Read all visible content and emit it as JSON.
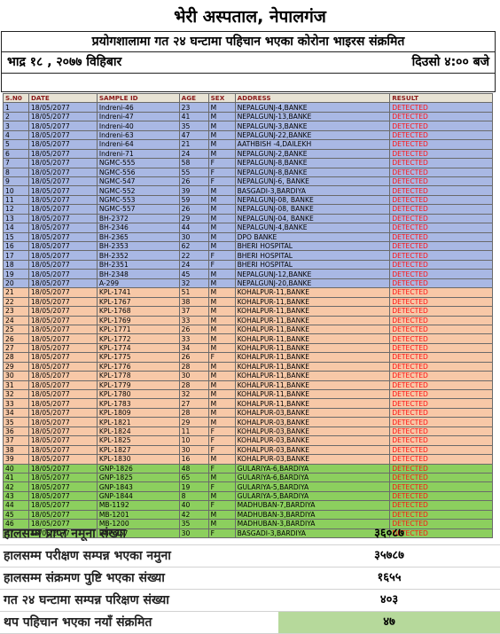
{
  "header": {
    "title": "भेरी अस्पताल, नेपालगंज",
    "subtitle": "प्रयोगशालामा गत २४ घन्टामा पहिचान भएका कोरोना भाइरस संक्रमित",
    "date": "भाद्र १८ , २०७७ विहिबार",
    "time": "दिउसो ४:०० बजे"
  },
  "table": {
    "columns": [
      "S.N0",
      "DATE",
      "SAMPLE ID",
      "AGE",
      "SEX",
      "ADDRESS",
      "RESULT"
    ],
    "rows": [
      {
        "sn": "1",
        "date": "18/05/2077",
        "id": "Indreni-46",
        "age": "23",
        "sex": "M",
        "addr": "NEPALGUNJ-4,BANKE",
        "res": "DETECTED",
        "grp": "blue"
      },
      {
        "sn": "2",
        "date": "18/05/2077",
        "id": "Indreni-47",
        "age": "41",
        "sex": "M",
        "addr": "NEPALGUNJ-13,BANKE",
        "res": "DETECTED",
        "grp": "blue"
      },
      {
        "sn": "3",
        "date": "18/05/2077",
        "id": "Indreni-40",
        "age": "35",
        "sex": "M",
        "addr": "NEPALGUNJ-3,BANKE",
        "res": "DETECTED",
        "grp": "blue"
      },
      {
        "sn": "4",
        "date": "18/05/2077",
        "id": "Indreni-63",
        "age": "47",
        "sex": "M",
        "addr": "NEPALGUNJ-22,BANKE",
        "res": "DETECTED",
        "grp": "blue"
      },
      {
        "sn": "5",
        "date": "18/05/2077",
        "id": "Indreni-64",
        "age": "21",
        "sex": "M",
        "addr": "AATHBISH -4,DAILEKH",
        "res": "DETECTED",
        "grp": "blue"
      },
      {
        "sn": "6",
        "date": "18/05/2077",
        "id": "Indreni-71",
        "age": "24",
        "sex": "M",
        "addr": "NEPALGUNJ-2,BANKE",
        "res": "DETECTED",
        "grp": "blue"
      },
      {
        "sn": "7",
        "date": "18/05/2077",
        "id": "NGMC-555",
        "age": "58",
        "sex": "F",
        "addr": "NEPALGUNJ-8,BANKE",
        "res": "DETECTED",
        "grp": "blue"
      },
      {
        "sn": "8",
        "date": "18/05/2077",
        "id": "NGMC-556",
        "age": "55",
        "sex": "F",
        "addr": "NEPALGUNJ-8,BANKE",
        "res": "DETECTED",
        "grp": "blue"
      },
      {
        "sn": "9",
        "date": "18/05/2077",
        "id": "NGMC-547",
        "age": "26",
        "sex": "F",
        "addr": "NEPALGUNJ-6, BANKE",
        "res": "DETECTED",
        "grp": "blue"
      },
      {
        "sn": "10",
        "date": "18/05/2077",
        "id": "NGMC-552",
        "age": "39",
        "sex": "M",
        "addr": "BASGADI-3,BARDIYA",
        "res": "DETECTED",
        "grp": "blue"
      },
      {
        "sn": "11",
        "date": "18/05/2077",
        "id": "NGMC-553",
        "age": "59",
        "sex": "M",
        "addr": "NEPALGUNJ-08, BANKE",
        "res": "DETECTED",
        "grp": "blue"
      },
      {
        "sn": "12",
        "date": "18/05/2077",
        "id": "NGMC-557",
        "age": "26",
        "sex": "M",
        "addr": "NEPALGUNJ-08, BANKE",
        "res": "DETECTED",
        "grp": "blue"
      },
      {
        "sn": "13",
        "date": "18/05/2077",
        "id": "BH-2372",
        "age": "29",
        "sex": "M",
        "addr": "NEPALGUNJ-04, BANKE",
        "res": "DETECTED",
        "grp": "blue"
      },
      {
        "sn": "14",
        "date": "18/05/2077",
        "id": "BH-2346",
        "age": "44",
        "sex": "M",
        "addr": "NEPALGUNJ-4,BANKE",
        "res": "DETECTED",
        "grp": "blue"
      },
      {
        "sn": "15",
        "date": "18/05/2077",
        "id": "BH-2365",
        "age": "30",
        "sex": "M",
        "addr": "DPO BANKE",
        "res": "DETECTED",
        "grp": "blue"
      },
      {
        "sn": "16",
        "date": "18/05/2077",
        "id": "BH-2353",
        "age": "62",
        "sex": "M",
        "addr": "BHERI HOSPITAL",
        "res": "DETECTED",
        "grp": "blue"
      },
      {
        "sn": "17",
        "date": "18/05/2077",
        "id": "BH-2352",
        "age": "22",
        "sex": "F",
        "addr": "BHERI HOSPITAL",
        "res": "DETECTED",
        "grp": "blue"
      },
      {
        "sn": "18",
        "date": "18/05/2077",
        "id": "BH-2351",
        "age": "24",
        "sex": "F",
        "addr": "BHERI HOSPITAL",
        "res": "DETECTED",
        "grp": "blue"
      },
      {
        "sn": "19",
        "date": "18/05/2077",
        "id": "BH-2348",
        "age": "45",
        "sex": "M",
        "addr": "NEPALGUNJ-12,BANKE",
        "res": "DETECTED",
        "grp": "blue"
      },
      {
        "sn": "20",
        "date": "18/05/2077",
        "id": "A-299",
        "age": "32",
        "sex": "M",
        "addr": "NEPALGUNJ-20,BANKE",
        "res": "DETECTED",
        "grp": "blue"
      },
      {
        "sn": "21",
        "date": "18/05/2077",
        "id": "KPL-1741",
        "age": "51",
        "sex": "M",
        "addr": "KOHALPUR-11,BANKE",
        "res": "DETECTED",
        "grp": "orange"
      },
      {
        "sn": "22",
        "date": "18/05/2077",
        "id": "KPL-1767",
        "age": "38",
        "sex": "M",
        "addr": "KOHALPUR-11,BANKE",
        "res": "DETECTED",
        "grp": "orange"
      },
      {
        "sn": "23",
        "date": "18/05/2077",
        "id": "KPL-1768",
        "age": "37",
        "sex": "M",
        "addr": "KOHALPUR-11,BANKE",
        "res": "DETECTED",
        "grp": "orange"
      },
      {
        "sn": "24",
        "date": "18/05/2077",
        "id": "KPL-1769",
        "age": "33",
        "sex": "M",
        "addr": "KOHALPUR-11,BANKE",
        "res": "DETECTED",
        "grp": "orange"
      },
      {
        "sn": "25",
        "date": "18/05/2077",
        "id": "KPL-1771",
        "age": "26",
        "sex": "M",
        "addr": "KOHALPUR-11,BANKE",
        "res": "DETECTED",
        "grp": "orange"
      },
      {
        "sn": "26",
        "date": "18/05/2077",
        "id": "KPL-1772",
        "age": "33",
        "sex": "M",
        "addr": "KOHALPUR-11,BANKE",
        "res": "DETECTED",
        "grp": "orange"
      },
      {
        "sn": "27",
        "date": "18/05/2077",
        "id": "KPL-1774",
        "age": "34",
        "sex": "M",
        "addr": "KOHALPUR-11,BANKE",
        "res": "DETECTED",
        "grp": "orange"
      },
      {
        "sn": "28",
        "date": "18/05/2077",
        "id": "KPL-1775",
        "age": "26",
        "sex": "F",
        "addr": "KOHALPUR-11,BANKE",
        "res": "DETECTED",
        "grp": "orange"
      },
      {
        "sn": "29",
        "date": "18/05/2077",
        "id": "KPL-1776",
        "age": "28",
        "sex": "M",
        "addr": "KOHALPUR-11,BANKE",
        "res": "DETECTED",
        "grp": "orange"
      },
      {
        "sn": "30",
        "date": "18/05/2077",
        "id": "KPL-1778",
        "age": "30",
        "sex": "M",
        "addr": "KOHALPUR-11,BANKE",
        "res": "DETECTED",
        "grp": "orange"
      },
      {
        "sn": "31",
        "date": "18/05/2077",
        "id": "KPL-1779",
        "age": "28",
        "sex": "M",
        "addr": "KOHALPUR-11,BANKE",
        "res": "DETECTED",
        "grp": "orange"
      },
      {
        "sn": "32",
        "date": "18/05/2077",
        "id": "KPL-1780",
        "age": "32",
        "sex": "M",
        "addr": "KOHALPUR-11,BANKE",
        "res": "DETECTED",
        "grp": "orange"
      },
      {
        "sn": "33",
        "date": "18/05/2077",
        "id": "KPL-1783",
        "age": "27",
        "sex": "M",
        "addr": "KOHALPUR-11,BANKE",
        "res": "DETECTED",
        "grp": "orange"
      },
      {
        "sn": "34",
        "date": "18/05/2077",
        "id": "KPL-1809",
        "age": "28",
        "sex": "M",
        "addr": "KOHALPUR-03,BANKE",
        "res": "DETECTED",
        "grp": "orange"
      },
      {
        "sn": "35",
        "date": "18/05/2077",
        "id": "KPL-1821",
        "age": "29",
        "sex": "M",
        "addr": "KOHALPUR-03,BANKE",
        "res": "DETECTED",
        "grp": "orange"
      },
      {
        "sn": "36",
        "date": "18/05/2077",
        "id": "KPL-1824",
        "age": "11",
        "sex": "F",
        "addr": "KOHALPUR-03,BANKE",
        "res": "DETECTED",
        "grp": "orange"
      },
      {
        "sn": "37",
        "date": "18/05/2077",
        "id": "KPL-1825",
        "age": "10",
        "sex": "F",
        "addr": "KOHALPUR-03,BANKE",
        "res": "DETECTED",
        "grp": "orange"
      },
      {
        "sn": "38",
        "date": "18/05/2077",
        "id": "KPL-1827",
        "age": "30",
        "sex": "F",
        "addr": "KOHALPUR-03,BANKE",
        "res": "DETECTED",
        "grp": "orange"
      },
      {
        "sn": "39",
        "date": "18/05/2077",
        "id": "KPL-1830",
        "age": "16",
        "sex": "M",
        "addr": "KOHALPUR-03,BANKE",
        "res": "DETECTED",
        "grp": "orange"
      },
      {
        "sn": "40",
        "date": "18/05/2077",
        "id": "GNP-1826",
        "age": "48",
        "sex": "F",
        "addr": "GULARIYA-6,BARDIYA",
        "res": "DETECTED",
        "grp": "green"
      },
      {
        "sn": "41",
        "date": "18/05/2077",
        "id": "GNP-1825",
        "age": "65",
        "sex": "M",
        "addr": "GULARIYA-6,BARDIYA",
        "res": "DETECTED",
        "grp": "green"
      },
      {
        "sn": "42",
        "date": "18/05/2077",
        "id": "GNP-1843",
        "age": "19",
        "sex": "F",
        "addr": "GULARIYA-5,BARDIYA",
        "res": "DETECTED",
        "grp": "green"
      },
      {
        "sn": "43",
        "date": "18/05/2077",
        "id": "GNP-1844",
        "age": "8",
        "sex": "M",
        "addr": "GULARIYA-5,BARDIYA",
        "res": "DETECTED",
        "grp": "green"
      },
      {
        "sn": "44",
        "date": "18/05/2077",
        "id": "MB-1192",
        "age": "40",
        "sex": "F",
        "addr": "MADHUBAN-7,BARDIYA",
        "res": "DETECTED",
        "grp": "green"
      },
      {
        "sn": "45",
        "date": "18/05/2077",
        "id": "MB-1201",
        "age": "42",
        "sex": "M",
        "addr": "MADHUBAN-3,BARDIYA",
        "res": "DETECTED",
        "grp": "green"
      },
      {
        "sn": "46",
        "date": "18/05/2077",
        "id": "MB-1200",
        "age": "35",
        "sex": "M",
        "addr": "MADHUBAN-3,BARDIYA",
        "res": "DETECTED",
        "grp": "green"
      },
      {
        "sn": "47",
        "date": "18/05/2077",
        "id": "BNP-957",
        "age": "30",
        "sex": "F",
        "addr": "BASGADI-3,BARDIYA",
        "res": "DETECTED",
        "grp": "green"
      }
    ]
  },
  "summary": [
    {
      "label": "हालसम्म प्राप्त नमूना संख्या",
      "value": "३६०८७",
      "highlight": false
    },
    {
      "label": "हालसम्म परीक्षण सम्पन्न भएका नमुना",
      "value": "३५७८७",
      "highlight": false
    },
    {
      "label": "हालसम्म संक्रमण पुष्टि भएका संख्या",
      "value": "१६५५",
      "highlight": false
    },
    {
      "label": "गत २४ घन्टामा सम्पन्न परिक्षण संख्या",
      "value": "४०३",
      "highlight": false
    },
    {
      "label": "थप पहिचान भएका  नयाँ संक्रमित",
      "value": "४७",
      "highlight": true
    }
  ]
}
